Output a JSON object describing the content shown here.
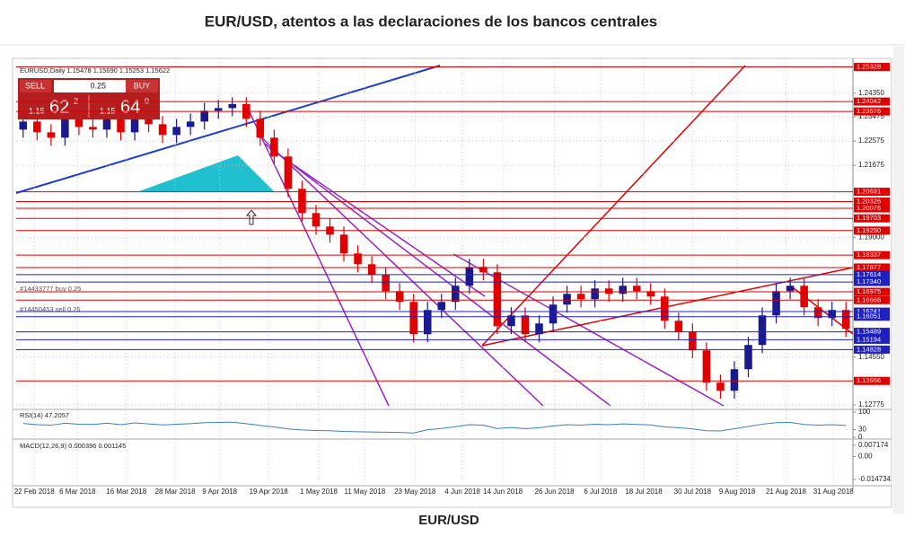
{
  "title": "EUR/USD, atentos a las declaraciones de los bancos centrales",
  "caption": "EUR/USD",
  "trade_panel": {
    "sell": "SELL",
    "buy": "BUY",
    "lot": "0.25",
    "bid": {
      "prefix": "1.15",
      "big": "62",
      "small": "2"
    },
    "ask": {
      "prefix": "1.15",
      "big": "64",
      "small": "0"
    }
  },
  "chart_data": {
    "type": "candlestick",
    "symbol_info": "EURUSD,Daily  1.15478 1.15690 1.15253 1.15622",
    "open": [
      1.23,
      1.233,
      1.229,
      1.227,
      1.234,
      1.231,
      1.23,
      1.235,
      1.229,
      1.236,
      1.232,
      1.228,
      1.231,
      1.233,
      1.237,
      1.238,
      1.2395,
      1.234,
      1.227,
      1.22,
      1.208,
      1.199,
      1.194,
      1.191,
      1.184,
      1.18,
      1.176,
      1.17,
      1.166,
      1.154,
      1.163,
      1.166,
      1.172,
      1.179,
      1.177,
      1.157,
      1.161,
      1.154,
      1.158,
      1.165,
      1.169,
      1.167,
      1.171,
      1.169,
      1.172,
      1.17,
      1.168,
      1.159,
      1.155,
      1.148,
      1.136,
      1.133,
      1.141,
      1.15,
      1.161,
      1.17,
      1.172,
      1.164,
      1.16,
      1.163
    ],
    "high": [
      1.236,
      1.236,
      1.232,
      1.237,
      1.237,
      1.234,
      1.238,
      1.238,
      1.239,
      1.239,
      1.235,
      1.234,
      1.236,
      1.24,
      1.241,
      1.242,
      1.242,
      1.237,
      1.23,
      1.223,
      1.211,
      1.202,
      1.197,
      1.194,
      1.187,
      1.183,
      1.179,
      1.173,
      1.169,
      1.166,
      1.169,
      1.175,
      1.182,
      1.182,
      1.18,
      1.164,
      1.164,
      1.161,
      1.168,
      1.172,
      1.172,
      1.174,
      1.174,
      1.175,
      1.175,
      1.173,
      1.171,
      1.162,
      1.158,
      1.151,
      1.139,
      1.144,
      1.153,
      1.164,
      1.173,
      1.175,
      1.175,
      1.167,
      1.166,
      1.166
    ],
    "low": [
      1.227,
      1.226,
      1.224,
      1.224,
      1.228,
      1.227,
      1.227,
      1.226,
      1.226,
      1.229,
      1.225,
      1.225,
      1.228,
      1.23,
      1.234,
      1.235,
      1.231,
      1.224,
      1.217,
      1.205,
      1.196,
      1.191,
      1.188,
      1.181,
      1.177,
      1.173,
      1.167,
      1.163,
      1.151,
      1.151,
      1.16,
      1.163,
      1.169,
      1.174,
      1.154,
      1.154,
      1.151,
      1.151,
      1.155,
      1.162,
      1.164,
      1.164,
      1.166,
      1.166,
      1.167,
      1.165,
      1.156,
      1.152,
      1.145,
      1.133,
      1.13,
      1.13,
      1.138,
      1.147,
      1.158,
      1.167,
      1.161,
      1.157,
      1.157,
      1.153
    ],
    "close": [
      1.233,
      1.229,
      1.227,
      1.234,
      1.231,
      1.23,
      1.235,
      1.229,
      1.236,
      1.232,
      1.228,
      1.231,
      1.233,
      1.237,
      1.238,
      1.2395,
      1.234,
      1.227,
      1.22,
      1.208,
      1.199,
      1.194,
      1.191,
      1.184,
      1.18,
      1.176,
      1.17,
      1.166,
      1.154,
      1.163,
      1.166,
      1.172,
      1.179,
      1.177,
      1.157,
      1.161,
      1.154,
      1.158,
      1.165,
      1.169,
      1.167,
      1.171,
      1.169,
      1.172,
      1.17,
      1.168,
      1.159,
      1.155,
      1.148,
      1.136,
      1.133,
      1.141,
      1.15,
      1.161,
      1.17,
      1.172,
      1.164,
      1.16,
      1.163,
      1.156
    ],
    "colors": {
      "up": "#1a1a8c",
      "down": "#e00000"
    },
    "xlim": [
      -0.5,
      59.5
    ],
    "xticks": [
      {
        "value": 0.8,
        "label": "22 Feb 2018"
      },
      {
        "value": 3.9,
        "label": "6 Mar 2018"
      },
      {
        "value": 7.4,
        "label": "16 Mar 2018"
      },
      {
        "value": 10.9,
        "label": "28 Mar 2018"
      },
      {
        "value": 14.1,
        "label": "9 Apr 2018"
      },
      {
        "value": 17.6,
        "label": "19 Apr 2018"
      },
      {
        "value": 21.2,
        "label": "1 May 2018"
      },
      {
        "value": 24.5,
        "label": "11 May 2018"
      },
      {
        "value": 28.1,
        "label": "23 May 2018"
      },
      {
        "value": 31.5,
        "label": "4 Jun 2018"
      },
      {
        "value": 34.4,
        "label": "14 Jun 2018"
      },
      {
        "value": 38.1,
        "label": "26 Jun 2018"
      },
      {
        "value": 41.4,
        "label": "6 Jul 2018"
      },
      {
        "value": 44.5,
        "label": "18 Jul 2018"
      },
      {
        "value": 48.0,
        "label": "30 Jul 2018"
      },
      {
        "value": 51.2,
        "label": "9 Aug 2018"
      },
      {
        "value": 54.7,
        "label": "21 Aug 2018"
      },
      {
        "value": 58.1,
        "label": "31 Aug 2018"
      }
    ],
    "ylim": [
      1.1264,
      1.2538
    ],
    "yticks": [
      {
        "value": 1.2435,
        "label": "1.24350"
      },
      1.23475,
      1.22575,
      1.21675,
      {
        "value": 1.19,
        "label": "1.19000"
      },
      {
        "value": 1.1455,
        "label": "1.14550"
      },
      1.12775
    ],
    "grid": true,
    "levels": [
      {
        "value": 1.25328,
        "color": "#e00000"
      },
      {
        "value": 1.24042,
        "color": "#e00000"
      },
      {
        "value": 1.23676,
        "color": "#e00000"
      },
      {
        "value": 1.20691,
        "color": "#e00000"
      },
      {
        "value": 1.20326,
        "color": "#e00000"
      },
      {
        "value": 1.20076,
        "color": "#e00000"
      },
      {
        "value": 1.19703,
        "color": "#e00000"
      },
      {
        "value": 1.1925,
        "label": "1.19250",
        "color": "#e00000"
      },
      {
        "value": 1.18337,
        "color": "#e00000"
      },
      {
        "value": 1.17877,
        "color": "#e00000"
      },
      {
        "value": 1.17614,
        "color": "#2020c0"
      },
      {
        "value": 1.1734,
        "label": "1.17340",
        "color": "#2020c0"
      },
      {
        "value": 1.16975,
        "color": "#e00000"
      },
      {
        "value": 1.16666,
        "color": "#e00000"
      },
      {
        "value": 1.16241,
        "color": "#2020c0"
      },
      {
        "value": 1.16051,
        "color": "#2020c0"
      },
      {
        "value": 1.15489,
        "color": "#2020c0"
      },
      {
        "value": 1.15194,
        "color": "#2020c0"
      },
      {
        "value": 1.14828,
        "color": "#2020c0"
      },
      {
        "value": 1.13666,
        "color": "#e00000"
      }
    ],
    "annotations": [
      "#14433777 buy 0.25",
      "#14450453 sell 0.25"
    ],
    "rsi": {
      "label": "RSI(14) 47.2057",
      "color": "#3a7fc8",
      "values": [
        55,
        50,
        48,
        56,
        52,
        51,
        56,
        50,
        57,
        53,
        49,
        52,
        54,
        58,
        59,
        60,
        54,
        47,
        41,
        33,
        29,
        27,
        26,
        23,
        22,
        21,
        20,
        19,
        17,
        30,
        35,
        42,
        50,
        48,
        35,
        39,
        34,
        38,
        45,
        50,
        48,
        52,
        50,
        53,
        51,
        49,
        41,
        38,
        33,
        26,
        25,
        34,
        43,
        52,
        58,
        59,
        51,
        48,
        50,
        47
      ],
      "ylim": [
        0,
        100
      ],
      "yticks": [
        0,
        30,
        100
      ]
    },
    "macd": {
      "label": "MACD(12,26,9) 0.000396 0.001145",
      "ylim": [
        -0.0182,
        0.0106
      ],
      "yticks": [
        0.007174,
        {
          "value": 0,
          "label": "0.00"
        },
        -0.014734
      ]
    }
  }
}
